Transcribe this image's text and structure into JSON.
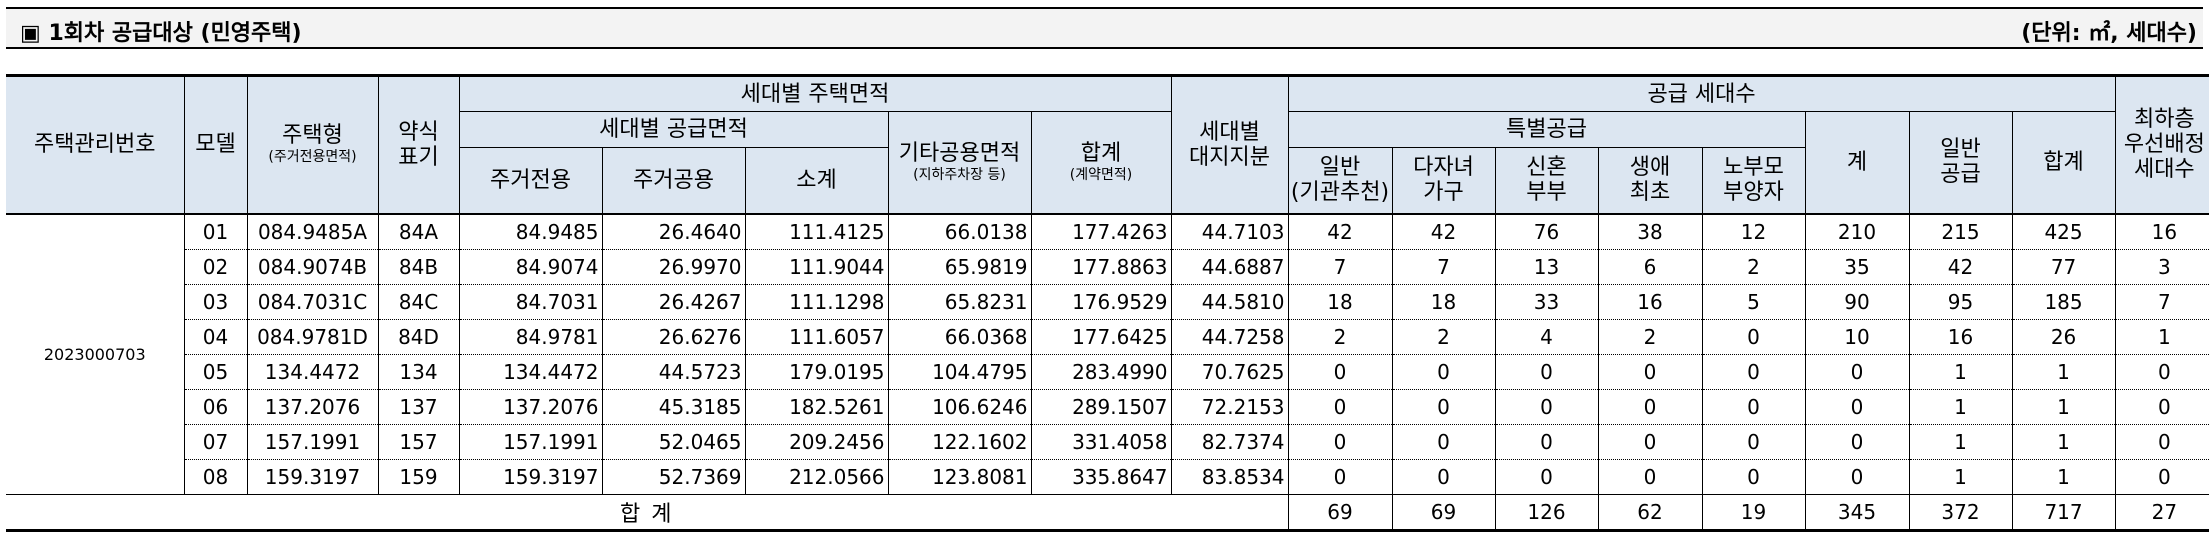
{
  "title_bar": {
    "heading": "▣ 1회차 공급대상 (민영주택)",
    "unit_note": "(단위: ㎡, 세대수)"
  },
  "table": {
    "headers": {
      "house_mgmt_no": "주택관리번호",
      "model": "모델",
      "house_type": "주택형",
      "house_type_sub": "(주거전용면적)",
      "abbr_line1": "약식",
      "abbr_line2": "표기",
      "area_group": "세대별 주택면적",
      "supply_area_group": "세대별 공급면적",
      "exclusive": "주거전용",
      "common": "주거공용",
      "subtotal": "소계",
      "other_common": "기타공용면적",
      "other_common_sub": "(지하주차장 등)",
      "total_area": "합계",
      "total_area_sub": "(계약면적)",
      "land_line1": "세대별",
      "land_line2": "대지지분",
      "supply_group": "공급 세대수",
      "special_group": "특별공급",
      "sp_general_line1": "일반",
      "sp_general_line2": "(기관추천)",
      "multi_line1": "다자녀",
      "multi_line2": "가구",
      "newlywed_line1": "신혼",
      "newlywed_line2": "부부",
      "first_line1": "생애",
      "first_line2": "최초",
      "elderly_line1": "노부모",
      "elderly_line2": "부양자",
      "special_total": "계",
      "general_line1": "일반",
      "general_line2": "공급",
      "grand_total": "합계",
      "lowfloor_line1": "최하층",
      "lowfloor_line2": "우선배정",
      "lowfloor_line3": "세대수"
    },
    "house_mgmt_no_value": "2023000703",
    "rows": [
      {
        "model": "01",
        "type": "084.9485A",
        "abbr": "84A",
        "excl": "84.9485",
        "comm": "26.4640",
        "sub": "111.4125",
        "other": "66.0138",
        "total": "177.4263",
        "land": "44.7103",
        "sp_gen": "42",
        "multi": "42",
        "newly": "76",
        "first": "38",
        "elder": "12",
        "sp_total": "210",
        "gen": "215",
        "grand": "425",
        "low": "16"
      },
      {
        "model": "02",
        "type": "084.9074B",
        "abbr": "84B",
        "excl": "84.9074",
        "comm": "26.9970",
        "sub": "111.9044",
        "other": "65.9819",
        "total": "177.8863",
        "land": "44.6887",
        "sp_gen": "7",
        "multi": "7",
        "newly": "13",
        "first": "6",
        "elder": "2",
        "sp_total": "35",
        "gen": "42",
        "grand": "77",
        "low": "3"
      },
      {
        "model": "03",
        "type": "084.7031C",
        "abbr": "84C",
        "excl": "84.7031",
        "comm": "26.4267",
        "sub": "111.1298",
        "other": "65.8231",
        "total": "176.9529",
        "land": "44.5810",
        "sp_gen": "18",
        "multi": "18",
        "newly": "33",
        "first": "16",
        "elder": "5",
        "sp_total": "90",
        "gen": "95",
        "grand": "185",
        "low": "7"
      },
      {
        "model": "04",
        "type": "084.9781D",
        "abbr": "84D",
        "excl": "84.9781",
        "comm": "26.6276",
        "sub": "111.6057",
        "other": "66.0368",
        "total": "177.6425",
        "land": "44.7258",
        "sp_gen": "2",
        "multi": "2",
        "newly": "4",
        "first": "2",
        "elder": "0",
        "sp_total": "10",
        "gen": "16",
        "grand": "26",
        "low": "1"
      },
      {
        "model": "05",
        "type": "134.4472",
        "abbr": "134",
        "excl": "134.4472",
        "comm": "44.5723",
        "sub": "179.0195",
        "other": "104.4795",
        "total": "283.4990",
        "land": "70.7625",
        "sp_gen": "0",
        "multi": "0",
        "newly": "0",
        "first": "0",
        "elder": "0",
        "sp_total": "0",
        "gen": "1",
        "grand": "1",
        "low": "0"
      },
      {
        "model": "06",
        "type": "137.2076",
        "abbr": "137",
        "excl": "137.2076",
        "comm": "45.3185",
        "sub": "182.5261",
        "other": "106.6246",
        "total": "289.1507",
        "land": "72.2153",
        "sp_gen": "0",
        "multi": "0",
        "newly": "0",
        "first": "0",
        "elder": "0",
        "sp_total": "0",
        "gen": "1",
        "grand": "1",
        "low": "0"
      },
      {
        "model": "07",
        "type": "157.1991",
        "abbr": "157",
        "excl": "157.1991",
        "comm": "52.0465",
        "sub": "209.2456",
        "other": "122.1602",
        "total": "331.4058",
        "land": "82.7374",
        "sp_gen": "0",
        "multi": "0",
        "newly": "0",
        "first": "0",
        "elder": "0",
        "sp_total": "0",
        "gen": "1",
        "grand": "1",
        "low": "0"
      },
      {
        "model": "08",
        "type": "159.3197",
        "abbr": "159",
        "excl": "159.3197",
        "comm": "52.7369",
        "sub": "212.0566",
        "other": "123.8081",
        "total": "335.8647",
        "land": "83.8534",
        "sp_gen": "0",
        "multi": "0",
        "newly": "0",
        "first": "0",
        "elder": "0",
        "sp_total": "0",
        "gen": "1",
        "grand": "1",
        "low": "0"
      }
    ],
    "total_row": {
      "label": "합 계",
      "sp_gen": "69",
      "multi": "69",
      "newly": "126",
      "first": "62",
      "elder": "19",
      "sp_total": "345",
      "gen": "372",
      "grand": "717",
      "low": "27"
    }
  }
}
